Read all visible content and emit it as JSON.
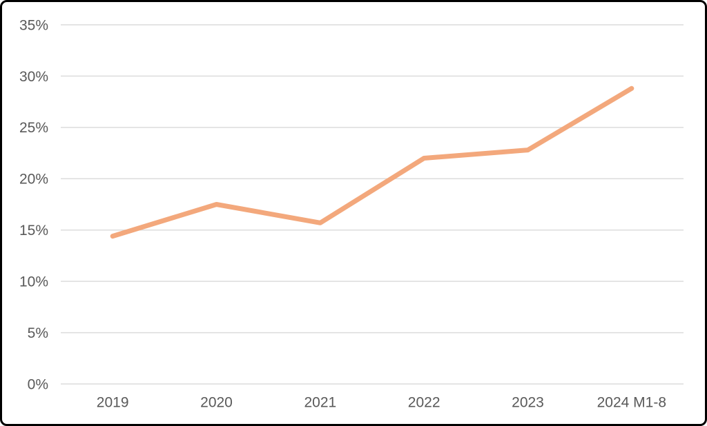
{
  "chart_data": {
    "type": "line",
    "categories": [
      "2019",
      "2020",
      "2021",
      "2022",
      "2023",
      "2024 M1-8"
    ],
    "series": [
      {
        "name": "share-percent",
        "values": [
          14.4,
          17.5,
          15.7,
          22.0,
          22.8,
          28.8
        ],
        "color": "#F3A87C"
      }
    ],
    "title": "",
    "xlabel": "",
    "ylabel": "",
    "ylim": [
      0,
      35
    ],
    "ytick_step": 5,
    "ytick_labels": [
      "0%",
      "5%",
      "10%",
      "15%",
      "20%",
      "25%",
      "30%",
      "35%"
    ],
    "ytick_suffix": "%",
    "grid": "horizontal",
    "legend_position": "none",
    "colors": {
      "line": "#F3A87C",
      "gridline": "#DCDCDC",
      "tick_label": "#595959",
      "frame_border": "#000000",
      "background": "#FFFFFF"
    }
  }
}
